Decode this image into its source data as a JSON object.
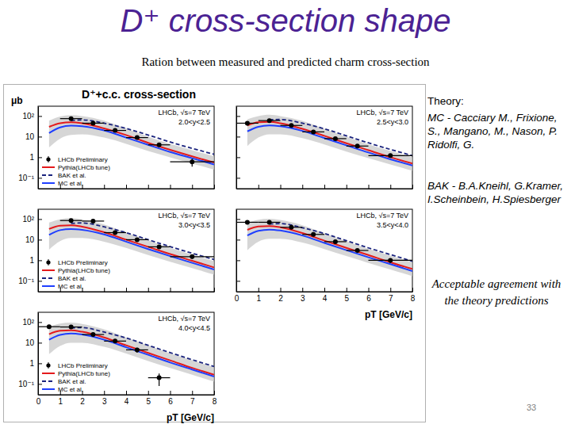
{
  "slide": {
    "title": "D⁺ cross-section shape",
    "subtitle": "Ration between measured and predicted charm cross-section",
    "theory_heading": "Theory:",
    "references": [
      "MC - Cacciary M., Frixione, S., Mangano, M., Nason, P. Ridolfi, G.",
      "BAK - B.A.Kneihl, G.Kramer, I.Scheinbein, H.Spiesberger"
    ],
    "conclusion": "Acceptable agreement with the theory predictions",
    "page": "33"
  },
  "figure": {
    "title": "D⁺+c.c. cross-section"
  },
  "chart_data": [
    {
      "type": "line",
      "ylabel": "μb",
      "annotations": [
        "LHCb, √s=7 TeV",
        "2.0<y<2.5"
      ],
      "log": "y",
      "xlim": [
        0,
        8
      ],
      "ylim": [
        0.03,
        300
      ],
      "xticks": [
        0,
        1,
        2,
        3,
        4,
        5,
        6,
        7,
        8
      ],
      "yticks": [
        {
          "value": 0.1,
          "label": "10⁻¹"
        },
        1,
        10,
        {
          "value": 100,
          "label": "10²"
        }
      ],
      "tick_labels": "y",
      "legend": "bottom-left",
      "series": [
        {
          "name": "LHCb Preliminary",
          "type": "scatter",
          "color": "#000000",
          "marker": "circle",
          "x": [
            0.5,
            1.5,
            2.5,
            3.5,
            4.5,
            5.5,
            7
          ],
          "values": [
            null,
            75,
            45,
            20,
            9,
            4,
            0.6
          ],
          "errors": [
            null,
            10,
            6,
            3,
            1.5,
            0.8,
            0.25
          ],
          "x_errors": [
            null,
            0.5,
            0.5,
            0.5,
            0.5,
            0.5,
            1
          ]
        },
        {
          "name": "Pythia(LHCb tune)",
          "type": "line",
          "color": "#e41a1c",
          "line_style": "solid",
          "x": [
            0.5,
            1,
            1.5,
            2,
            3,
            4,
            5,
            6,
            7,
            8
          ],
          "values": [
            30,
            45,
            50,
            45,
            25,
            12,
            5,
            2.3,
            1.1,
            0.55
          ]
        },
        {
          "name": "BAK et al.",
          "type": "line",
          "color": "#1a237e",
          "line_style": "dashed",
          "x": [
            0.5,
            1,
            1.5,
            2,
            3,
            4,
            5,
            6,
            7,
            8
          ],
          "values": [
            null,
            null,
            60,
            65,
            45,
            25,
            12,
            5.5,
            2.7,
            1.4
          ]
        },
        {
          "name": "MC et al.",
          "type": "line",
          "color": "#1f3fff",
          "line_style": "solid",
          "x": [
            0.5,
            1,
            1.5,
            2,
            3,
            4,
            5,
            6,
            7,
            8
          ],
          "values": [
            15,
            28,
            34,
            32,
            20,
            9,
            4,
            1.8,
            0.9,
            0.45
          ]
        },
        {
          "type": "area",
          "color": "#c8c8c8",
          "x": [
            0.5,
            1,
            1.5,
            2,
            3,
            4,
            5,
            6,
            7,
            8
          ],
          "values": [
            60,
            95,
            110,
            100,
            60,
            25,
            10,
            4.5,
            2.2,
            1.1
          ],
          "low": [
            3,
            8,
            12,
            13,
            9,
            4.5,
            2,
            1,
            0.5,
            0.25
          ]
        }
      ]
    },
    {
      "type": "line",
      "annotations": [
        "LHCb, √s=7 TeV",
        "2.5<y<3.0"
      ],
      "log": "y",
      "xlim": [
        0,
        8
      ],
      "ylim": [
        0.03,
        300
      ],
      "xticks": [
        0,
        1,
        2,
        3,
        4,
        5,
        6,
        7,
        8
      ],
      "yticks": [
        {
          "value": 0.1,
          "label": "10⁻¹"
        },
        1,
        10,
        {
          "value": 100,
          "label": "10²"
        }
      ],
      "tick_labels": false,
      "series": [
        {
          "type": "scatter",
          "color": "#000000",
          "marker": "circle",
          "x": [
            0.5,
            1.5,
            2.5,
            3.5,
            4.5,
            5.5,
            7
          ],
          "values": [
            45,
            60,
            35,
            17,
            8,
            3.5,
            1.2
          ],
          "errors": [
            10,
            8,
            5,
            2.5,
            1.2,
            0.6,
            0.25
          ],
          "x_errors": [
            0.5,
            0.5,
            0.5,
            0.5,
            0.5,
            0.5,
            1
          ]
        },
        {
          "type": "line",
          "color": "#e41a1c",
          "line_style": "solid",
          "x": [
            0.5,
            1,
            1.5,
            2,
            3,
            4,
            5,
            6,
            7,
            8
          ],
          "values": [
            35,
            50,
            52,
            45,
            24,
            11,
            4.8,
            2.2,
            1.0,
            0.5
          ]
        },
        {
          "type": "line",
          "color": "#1a237e",
          "line_style": "dashed",
          "x": [
            0.5,
            1,
            1.5,
            2,
            3,
            4,
            5,
            6,
            7,
            8
          ],
          "values": [
            null,
            null,
            65,
            68,
            45,
            24,
            11,
            5,
            2.4,
            1.2
          ]
        },
        {
          "type": "line",
          "color": "#1f3fff",
          "line_style": "solid",
          "x": [
            0.5,
            1,
            1.5,
            2,
            3,
            4,
            5,
            6,
            7,
            8
          ],
          "values": [
            18,
            30,
            35,
            32,
            19,
            8.5,
            3.8,
            1.7,
            0.8,
            0.4
          ]
        },
        {
          "type": "area",
          "color": "#c8c8c8",
          "x": [
            0.5,
            1,
            1.5,
            2,
            3,
            4,
            5,
            6,
            7,
            8
          ],
          "values": [
            70,
            100,
            115,
            100,
            58,
            24,
            10,
            4.3,
            2,
            1
          ],
          "low": [
            3.5,
            9,
            13,
            13,
            8.5,
            4.2,
            1.9,
            0.9,
            0.45,
            0.22
          ]
        }
      ]
    },
    {
      "type": "line",
      "annotations": [
        "LHCb, √s=7 TeV",
        "3.0<y<3.5"
      ],
      "log": "y",
      "xlim": [
        0,
        8
      ],
      "ylim": [
        0.03,
        300
      ],
      "xticks": [
        0,
        1,
        2,
        3,
        4,
        5,
        6,
        7,
        8
      ],
      "yticks": [
        {
          "value": 0.1,
          "label": "10⁻¹"
        },
        1,
        10,
        {
          "value": 100,
          "label": "10²"
        }
      ],
      "tick_labels": "y",
      "legend": "bottom-left",
      "series": [
        {
          "name": "LHCb Preliminary",
          "type": "scatter",
          "color": "#000000",
          "marker": "circle",
          "x": [
            0.5,
            1.5,
            2.5,
            3.5,
            4.5,
            5.5,
            7
          ],
          "values": [
            null,
            85,
            80,
            22,
            10,
            4.5,
            1.5
          ],
          "errors": [
            null,
            12,
            10,
            3.5,
            1.6,
            0.8,
            0.35
          ],
          "x_errors": [
            null,
            0.5,
            0.5,
            0.5,
            0.5,
            0.5,
            1
          ]
        },
        {
          "name": "Pythia(LHCb tune)",
          "type": "line",
          "color": "#e41a1c",
          "line_style": "solid",
          "x": [
            0.5,
            1,
            1.5,
            2,
            3,
            4,
            5,
            6,
            7,
            8
          ],
          "values": [
            33,
            48,
            50,
            43,
            23,
            10,
            4.5,
            2,
            0.95,
            0.45
          ]
        },
        {
          "name": "BAK et al.",
          "type": "line",
          "color": "#1a237e",
          "line_style": "dashed",
          "x": [
            0.5,
            1,
            1.5,
            2,
            3,
            4,
            5,
            6,
            7,
            8
          ],
          "values": [
            null,
            null,
            62,
            65,
            42,
            22,
            10,
            4.6,
            2.2,
            1.1
          ]
        },
        {
          "name": "MC et al.",
          "type": "line",
          "color": "#1f3fff",
          "line_style": "solid",
          "x": [
            0.5,
            1,
            1.5,
            2,
            3,
            4,
            5,
            6,
            7,
            8
          ],
          "values": [
            17,
            29,
            33,
            30,
            18,
            8,
            3.5,
            1.6,
            0.75,
            0.36
          ]
        },
        {
          "type": "area",
          "color": "#c8c8c8",
          "x": [
            0.5,
            1,
            1.5,
            2,
            3,
            4,
            5,
            6,
            7,
            8
          ],
          "values": [
            68,
            98,
            110,
            95,
            55,
            22,
            9.5,
            4,
            1.9,
            0.9
          ],
          "low": [
            3.3,
            8.5,
            12,
            12,
            8,
            4,
            1.8,
            0.85,
            0.42,
            0.2
          ]
        }
      ]
    },
    {
      "type": "line",
      "annotations": [
        "LHCb, √s=7 TeV",
        "3.5<y<4.0"
      ],
      "xlabel": "pT [GeV/c]",
      "log": "y",
      "xlim": [
        0,
        8
      ],
      "ylim": [
        0.03,
        300
      ],
      "xticks": [
        0,
        1,
        2,
        3,
        4,
        5,
        6,
        7,
        8
      ],
      "yticks": [
        {
          "value": 0.1,
          "label": "10⁻¹"
        },
        1,
        10,
        {
          "value": 100,
          "label": "10²"
        }
      ],
      "tick_labels": "x",
      "series": [
        {
          "type": "scatter",
          "color": "#000000",
          "marker": "circle",
          "x": [
            0.5,
            1.5,
            2.5,
            3.5,
            4.5,
            5.5,
            7
          ],
          "values": [
            70,
            70,
            40,
            18,
            8,
            3,
            1.0
          ],
          "errors": [
            12,
            10,
            6,
            2.8,
            1.3,
            0.6,
            0.25
          ],
          "x_errors": [
            0.5,
            0.5,
            0.5,
            0.5,
            0.5,
            0.5,
            1
          ]
        },
        {
          "type": "line",
          "color": "#e41a1c",
          "line_style": "solid",
          "x": [
            0.5,
            1,
            1.5,
            2,
            3,
            4,
            5,
            6,
            7,
            8
          ],
          "values": [
            30,
            44,
            46,
            40,
            21,
            9,
            4,
            1.8,
            0.8,
            0.38
          ]
        },
        {
          "type": "line",
          "color": "#1a237e",
          "line_style": "dashed",
          "x": [
            0.5,
            1,
            1.5,
            2,
            3,
            4,
            5,
            6,
            7,
            8
          ],
          "values": [
            null,
            null,
            58,
            60,
            38,
            20,
            9,
            4,
            1.9,
            0.9
          ]
        },
        {
          "type": "line",
          "color": "#1f3fff",
          "line_style": "solid",
          "x": [
            0.5,
            1,
            1.5,
            2,
            3,
            4,
            5,
            6,
            7,
            8
          ],
          "values": [
            16,
            27,
            31,
            28,
            16,
            7,
            3.1,
            1.4,
            0.65,
            0.3
          ]
        },
        {
          "type": "area",
          "color": "#c8c8c8",
          "x": [
            0.5,
            1,
            1.5,
            2,
            3,
            4,
            5,
            6,
            7,
            8
          ],
          "values": [
            64,
            92,
            104,
            90,
            50,
            20,
            8.5,
            3.6,
            1.7,
            0.8
          ],
          "low": [
            3.1,
            8,
            11,
            11,
            7.2,
            3.5,
            1.6,
            0.75,
            0.36,
            0.17
          ]
        }
      ]
    },
    {
      "type": "line",
      "annotations": [
        "LHCb, √s=7 TeV",
        "4.0<y<4.5"
      ],
      "xlabel": "pT [GeV/c]",
      "log": "y",
      "xlim": [
        0,
        8
      ],
      "ylim": [
        0.03,
        300
      ],
      "xticks": [
        0,
        1,
        2,
        3,
        4,
        5,
        6,
        7,
        8
      ],
      "yticks": [
        {
          "value": 0.1,
          "label": "10⁻¹"
        },
        1,
        10,
        {
          "value": 100,
          "label": "10²"
        }
      ],
      "tick_labels": true,
      "legend": "bottom-left",
      "series": [
        {
          "name": "LHCb Preliminary",
          "type": "scatter",
          "color": "#000000",
          "marker": "circle",
          "x": [
            0.5,
            1.5,
            2.5,
            3.5,
            4.5,
            5.5,
            7
          ],
          "values": [
            60,
            58,
            25,
            12,
            4.5,
            0.2,
            null
          ],
          "errors": [
            12,
            10,
            5,
            2.5,
            1.2,
            0.12,
            null
          ],
          "x_errors": [
            0.5,
            0.5,
            0.5,
            0.5,
            0.5,
            0.5,
            null
          ]
        },
        {
          "name": "Pythia(LHCb tune)",
          "type": "line",
          "color": "#e41a1c",
          "line_style": "solid",
          "x": [
            0.5,
            1,
            1.5,
            2,
            3,
            4,
            5,
            6,
            7,
            8
          ],
          "values": [
            26,
            38,
            40,
            34,
            18,
            7.5,
            3.2,
            1.4,
            0.6,
            0.28
          ]
        },
        {
          "name": "BAK et al.",
          "type": "line",
          "color": "#1a237e",
          "line_style": "dashed",
          "x": [
            0.5,
            1,
            1.5,
            2,
            3,
            4,
            5,
            6,
            7,
            8
          ],
          "values": [
            null,
            null,
            52,
            54,
            33,
            17,
            7.5,
            3.3,
            1.5,
            0.7
          ]
        },
        {
          "name": "MC et al.",
          "type": "line",
          "color": "#1f3fff",
          "line_style": "solid",
          "x": [
            0.5,
            1,
            1.5,
            2,
            3,
            4,
            5,
            6,
            7,
            8
          ],
          "values": [
            14,
            24,
            28,
            25,
            14,
            6,
            2.6,
            1.1,
            0.5,
            0.23
          ]
        },
        {
          "type": "area",
          "color": "#c8c8c8",
          "x": [
            0.5,
            1,
            1.5,
            2,
            3,
            4,
            5,
            6,
            7,
            8
          ],
          "values": [
            58,
            85,
            95,
            82,
            45,
            18,
            7.5,
            3.1,
            1.4,
            0.65
          ],
          "low": [
            2.8,
            7,
            10,
            10,
            6.3,
            3,
            1.3,
            0.6,
            0.28,
            0.13
          ]
        }
      ]
    }
  ]
}
